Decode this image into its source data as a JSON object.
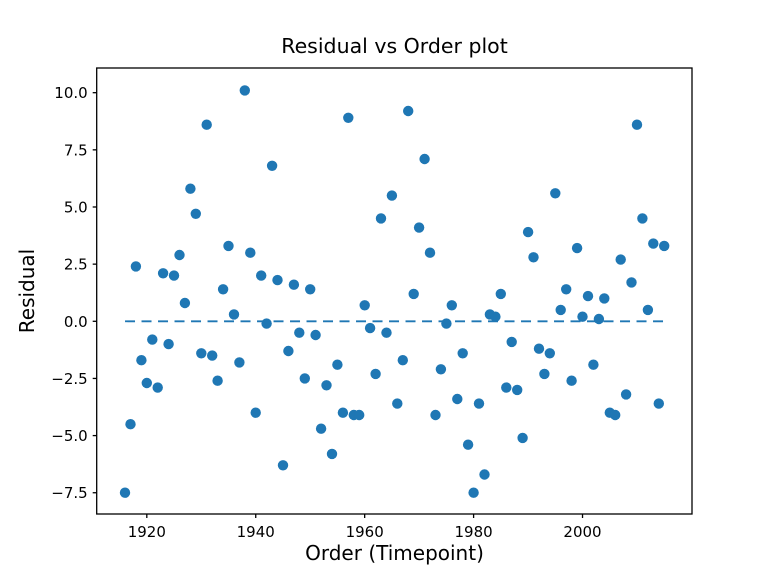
{
  "figure": {
    "background": "#ffffff"
  },
  "chart_data": {
    "type": "scatter",
    "title": "Residual vs Order plot",
    "xlabel": "Order (Timepoint)",
    "ylabel": "Residual",
    "xlim": [
      1910.8,
      2020.1
    ],
    "ylim": [
      -8.43,
      11.08
    ],
    "grid": false,
    "legend": null,
    "marker_color": "#1f77b4",
    "axis_color": "#000000",
    "x_ticks": {
      "values": [
        1920,
        1940,
        1960,
        1980,
        2000
      ],
      "labels": [
        "1920",
        "1940",
        "1960",
        "1980",
        "2000"
      ]
    },
    "y_ticks": {
      "values": [
        10.0,
        7.5,
        5.0,
        2.5,
        0.0,
        -2.5,
        -5.0,
        -7.5
      ],
      "labels": [
        "10.0",
        "7.5",
        "5.0",
        "2.5",
        "0.0",
        "−2.5",
        "−5.0",
        "−7.5"
      ]
    },
    "zero_line": {
      "y": 0,
      "x_start": 1916,
      "x_end": 2015,
      "style": "dashed",
      "color": "#1f77b4"
    },
    "series": [
      {
        "name": "residuals",
        "x": [
          1916,
          1917,
          1918,
          1919,
          1920,
          1921,
          1922,
          1923,
          1924,
          1925,
          1926,
          1927,
          1928,
          1929,
          1930,
          1931,
          1932,
          1933,
          1934,
          1935,
          1936,
          1937,
          1938,
          1939,
          1940,
          1941,
          1942,
          1943,
          1944,
          1945,
          1946,
          1947,
          1948,
          1949,
          1950,
          1951,
          1952,
          1953,
          1954,
          1955,
          1956,
          1957,
          1958,
          1959,
          1960,
          1961,
          1962,
          1963,
          1964,
          1965,
          1966,
          1967,
          1968,
          1969,
          1970,
          1971,
          1972,
          1973,
          1974,
          1975,
          1976,
          1977,
          1978,
          1979,
          1980,
          1981,
          1982,
          1983,
          1984,
          1985,
          1986,
          1987,
          1988,
          1989,
          1990,
          1991,
          1992,
          1993,
          1994,
          1995,
          1996,
          1997,
          1998,
          1999,
          2000,
          2001,
          2002,
          2003,
          2004,
          2005,
          2006,
          2007,
          2008,
          2009,
          2010,
          2011,
          2012,
          2013,
          2014,
          2015
        ],
        "y": [
          -7.5,
          -4.5,
          2.4,
          -1.7,
          -2.7,
          -0.8,
          -2.9,
          2.1,
          -1.0,
          2.0,
          2.9,
          0.8,
          5.8,
          4.7,
          -1.4,
          8.6,
          -1.5,
          -2.6,
          1.4,
          3.3,
          0.3,
          -1.8,
          10.1,
          3.0,
          -4.0,
          2.0,
          -0.1,
          6.8,
          1.8,
          -6.3,
          -1.3,
          1.6,
          -0.5,
          -2.5,
          1.4,
          -0.6,
          -4.7,
          -2.8,
          -5.8,
          -1.9,
          -4.0,
          8.9,
          -4.1,
          -4.1,
          0.7,
          -0.3,
          -2.3,
          4.5,
          -0.5,
          5.5,
          -3.6,
          -1.7,
          9.2,
          1.2,
          4.1,
          7.1,
          3.0,
          -4.1,
          -2.1,
          -0.1,
          0.7,
          -3.4,
          -1.4,
          -5.4,
          -7.5,
          -3.6,
          -6.7,
          0.3,
          0.2,
          1.2,
          -2.9,
          -0.9,
          -3.0,
          -5.1,
          3.9,
          2.8,
          -1.2,
          -2.3,
          -1.4,
          5.6,
          0.5,
          1.4,
          -2.6,
          3.2,
          0.2,
          1.1,
          -1.9,
          0.1,
          1.0,
          -4.0,
          -4.1,
          2.7,
          -3.2,
          1.7,
          8.6,
          4.5,
          0.5,
          3.4,
          -3.6,
          3.3
        ]
      }
    ]
  }
}
